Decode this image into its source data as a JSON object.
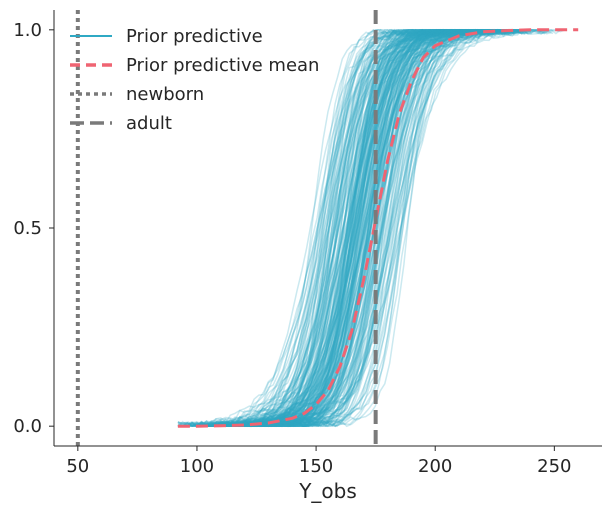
{
  "chart_data": {
    "type": "line",
    "title": "",
    "xlabel": "Y_obs",
    "ylabel": "",
    "xlim": [
      40,
      270
    ],
    "ylim": [
      -0.05,
      1.05
    ],
    "xticks": [
      50,
      100,
      150,
      200,
      250
    ],
    "yticks": [
      0.0,
      0.5,
      1.0
    ],
    "xtick_labels": [
      "50",
      "100",
      "150",
      "200",
      "250"
    ],
    "ytick_labels": [
      "0.0",
      "0.5",
      "1.0"
    ],
    "grid": false,
    "legend_position": "top-left",
    "legend": [
      {
        "label": "Prior predictive",
        "style": "solid",
        "color": "#2fa9c4"
      },
      {
        "label": "Prior predictive mean",
        "style": "dashed",
        "color": "#ef6472"
      },
      {
        "label": "newborn",
        "style": "dotted",
        "color": "#7a7a7a"
      },
      {
        "label": "adult",
        "style": "dashed",
        "color": "#7a7a7a"
      }
    ],
    "series": [
      {
        "name": "Prior predictive",
        "kind": "ecdf-bundle",
        "color": "#2fa9c4",
        "draws": 240,
        "center_min": 145,
        "center_max": 190,
        "spread_min": 7,
        "spread_max": 16,
        "x_min": 92,
        "x_max": 260
      },
      {
        "name": "Prior predictive mean",
        "x": [
          92,
          100,
          110,
          120,
          130,
          140,
          145,
          150,
          155,
          160,
          165,
          170,
          175,
          180,
          185,
          190,
          195,
          200,
          210,
          220,
          230,
          240,
          250,
          260
        ],
        "y": [
          0.0,
          0.0,
          0.001,
          0.003,
          0.008,
          0.02,
          0.032,
          0.055,
          0.09,
          0.15,
          0.24,
          0.37,
          0.52,
          0.67,
          0.79,
          0.87,
          0.93,
          0.96,
          0.985,
          0.995,
          0.998,
          1.0,
          1.0,
          1.0
        ],
        "color": "#ef6472",
        "style": "dashed"
      }
    ],
    "reference_lines": [
      {
        "name": "newborn",
        "x": 50,
        "style": "dotted",
        "color": "#7a7a7a"
      },
      {
        "name": "adult",
        "x": 175,
        "style": "dashed",
        "color": "#7a7a7a"
      }
    ]
  }
}
